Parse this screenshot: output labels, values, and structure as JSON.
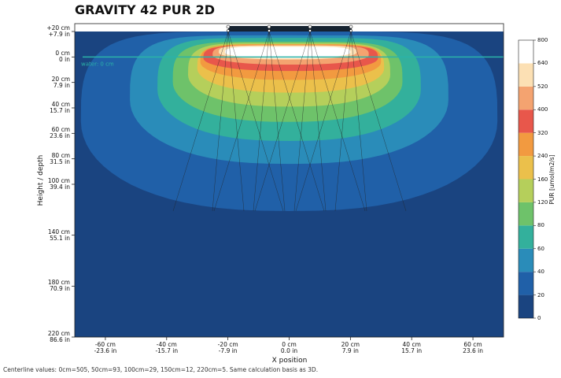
{
  "chart_data": {
    "type": "contour",
    "title": "GRAVITY 42 PUR 2D",
    "x_label": "X position",
    "y_label": "Height / depth",
    "annotation": "water: 0 cm",
    "note": "Centerline values: 0cm=505, 50cm=93, 100cm=29, 150cm=12, 220cm=5. Same calculation basis as 3D.",
    "xlim": [
      -70,
      70
    ],
    "ylim": [
      -20,
      220
    ],
    "xticks": [
      {
        "value": -60,
        "label": "-60 cm\n-23.6 in"
      },
      {
        "value": -40,
        "label": "-40 cm\n-15.7 in"
      },
      {
        "value": -20,
        "label": "-20 cm\n-7.9 in"
      },
      {
        "value": 0,
        "label": "0 cm\n0.0 in"
      },
      {
        "value": 20,
        "label": "20 cm\n7.9 in"
      },
      {
        "value": 40,
        "label": "40 cm\n15.7 in"
      },
      {
        "value": 60,
        "label": "60 cm\n23.6 in"
      }
    ],
    "yticks": [
      {
        "value": -20,
        "label": "+20 cm\n+7.9 in"
      },
      {
        "value": 0,
        "label": "0 cm\n0 in"
      },
      {
        "value": 20,
        "label": "20 cm\n7.9 in"
      },
      {
        "value": 40,
        "label": "40 cm\n15.7 in"
      },
      {
        "value": 60,
        "label": "60 cm\n23.6 in"
      },
      {
        "value": 80,
        "label": "80 cm\n31.5 in"
      },
      {
        "value": 100,
        "label": "100 cm\n39.4 in"
      },
      {
        "value": 140,
        "label": "140 cm\n55.1 in"
      },
      {
        "value": 180,
        "label": "180 cm\n70.9 in"
      },
      {
        "value": 220,
        "label": "220 cm\n86.6 in"
      }
    ],
    "contours": [
      {
        "level": 20,
        "x": [
          -68,
          68
        ],
        "y": [
          -20,
          121
        ]
      },
      {
        "level": 40,
        "x": [
          -52,
          52
        ],
        "y": [
          -17,
          84
        ]
      },
      {
        "level": 60,
        "x": [
          -43,
          43
        ],
        "y": [
          -15,
          66
        ]
      },
      {
        "level": 80,
        "x": [
          -38,
          37
        ],
        "y": [
          -12,
          51
        ]
      },
      {
        "level": 120,
        "x": [
          -33,
          33
        ],
        "y": [
          -11,
          39
        ]
      },
      {
        "level": 160,
        "x": [
          -30,
          31
        ],
        "y": [
          -10,
          28
        ]
      },
      {
        "level": 240,
        "x": [
          -29,
          30
        ],
        "y": [
          -10,
          18
        ]
      },
      {
        "level": 320,
        "x": [
          -28,
          29
        ],
        "y": [
          -9,
          11
        ]
      },
      {
        "level": 400,
        "x": [
          -25,
          26
        ],
        "y": [
          -9,
          6
        ]
      },
      {
        "level": 520,
        "x": [
          -23,
          22
        ],
        "y": [
          -9,
          2
        ]
      },
      {
        "level": 640,
        "x": [
          -21,
          20
        ],
        "y": [
          -8,
          1
        ]
      }
    ],
    "colorbar": {
      "label": "PUR [umol/m2/s]",
      "ticks": [
        0,
        20,
        40,
        60,
        80,
        120,
        160,
        240,
        320,
        400,
        520,
        640,
        800
      ],
      "colors": [
        "#1a4480",
        "#2060a8",
        "#2a8cb9",
        "#33b09c",
        "#6ec26a",
        "#b5cf5b",
        "#ebc04b",
        "#f29a40",
        "#e8574b",
        "#f4a370",
        "#fce0b4",
        "#ffffff"
      ]
    }
  }
}
